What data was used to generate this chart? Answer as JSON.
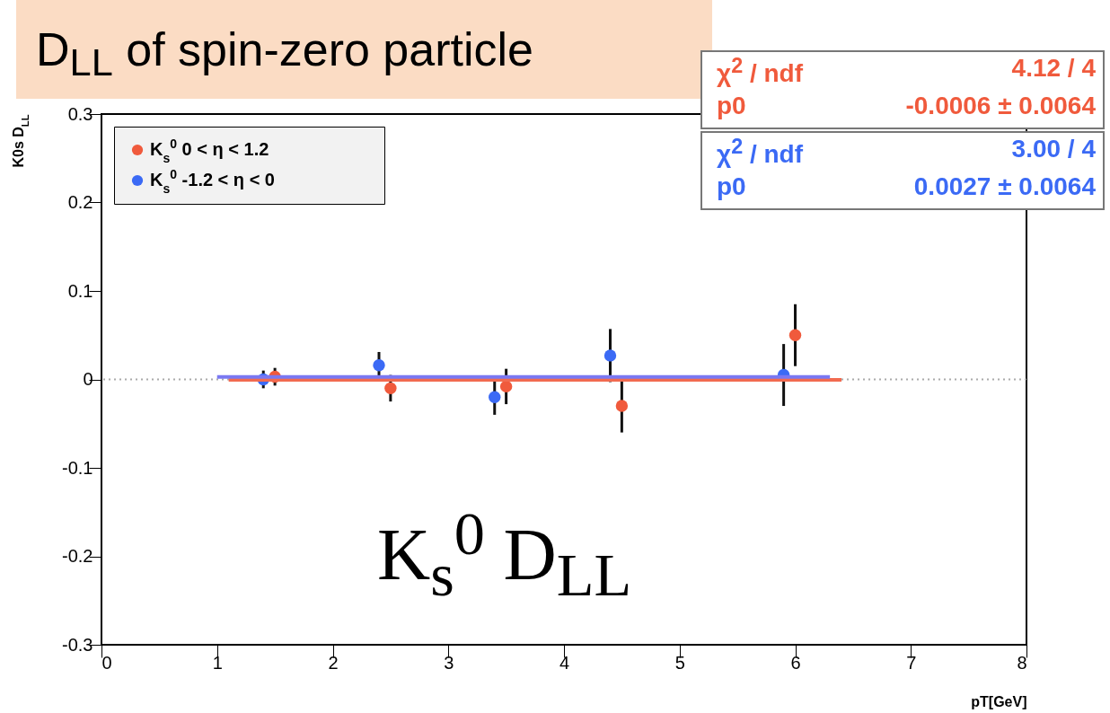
{
  "chart_data": {
    "type": "scatter",
    "title": "D$_{LL}$ of spin-zero particle",
    "xlabel": "pT[GeV]",
    "ylabel": "K0s D$_{LL}$",
    "xlim": [
      0,
      8
    ],
    "xticks": [
      0,
      1,
      2,
      3,
      4,
      5,
      6,
      7,
      8
    ],
    "ylim": [
      -0.3,
      0.3
    ],
    "yticks": [
      -0.3,
      -0.2,
      -0.1,
      0,
      0.1,
      0.2,
      0.3
    ],
    "marker": "circle",
    "legend": "top left",
    "series": [
      {
        "name": "K$_{s}$$^{0}$ 0 < η < 1.2",
        "color": "#f05a3c",
        "x": [
          1.5,
          2.5,
          3.5,
          4.5,
          6.0
        ],
        "values": [
          0.003,
          -0.01,
          -0.008,
          -0.03,
          0.05
        ],
        "errors": [
          0.01,
          0.015,
          0.02,
          0.03,
          0.035
        ]
      },
      {
        "name": "K$_{s}$$^{0}$ -1.2 < η < 0",
        "color": "#3b6af5",
        "x": [
          1.4,
          2.4,
          3.4,
          4.4,
          5.9
        ],
        "values": [
          0.0,
          0.016,
          -0.02,
          0.027,
          0.005
        ],
        "errors": [
          0.01,
          0.015,
          0.02,
          0.03,
          0.035
        ]
      },
      {
        "type": "line",
        "marker": "none",
        "color": "#f26b50",
        "x": [
          1.1,
          6.4
        ],
        "values": [
          -0.0006,
          -0.0006
        ]
      },
      {
        "type": "line",
        "marker": "none",
        "color": "#7a78f2",
        "x": [
          1.0,
          6.3
        ],
        "values": [
          0.0027,
          0.0027
        ]
      }
    ],
    "ref_lines": [
      {
        "axis": "y",
        "value": 0,
        "color": "#aaaaaa",
        "line_style": "dotted"
      }
    ],
    "annotations": [
      "χ$^{2}$ / ndf",
      "4.12 / 4",
      "p0",
      "-0.0006 ± 0.0064",
      "χ$^{2}$ / ndf",
      "3.00 / 4",
      "p0",
      "0.0027 ± 0.0064",
      "K$_{s}$$^{0}$ D$_{LL}$"
    ]
  }
}
